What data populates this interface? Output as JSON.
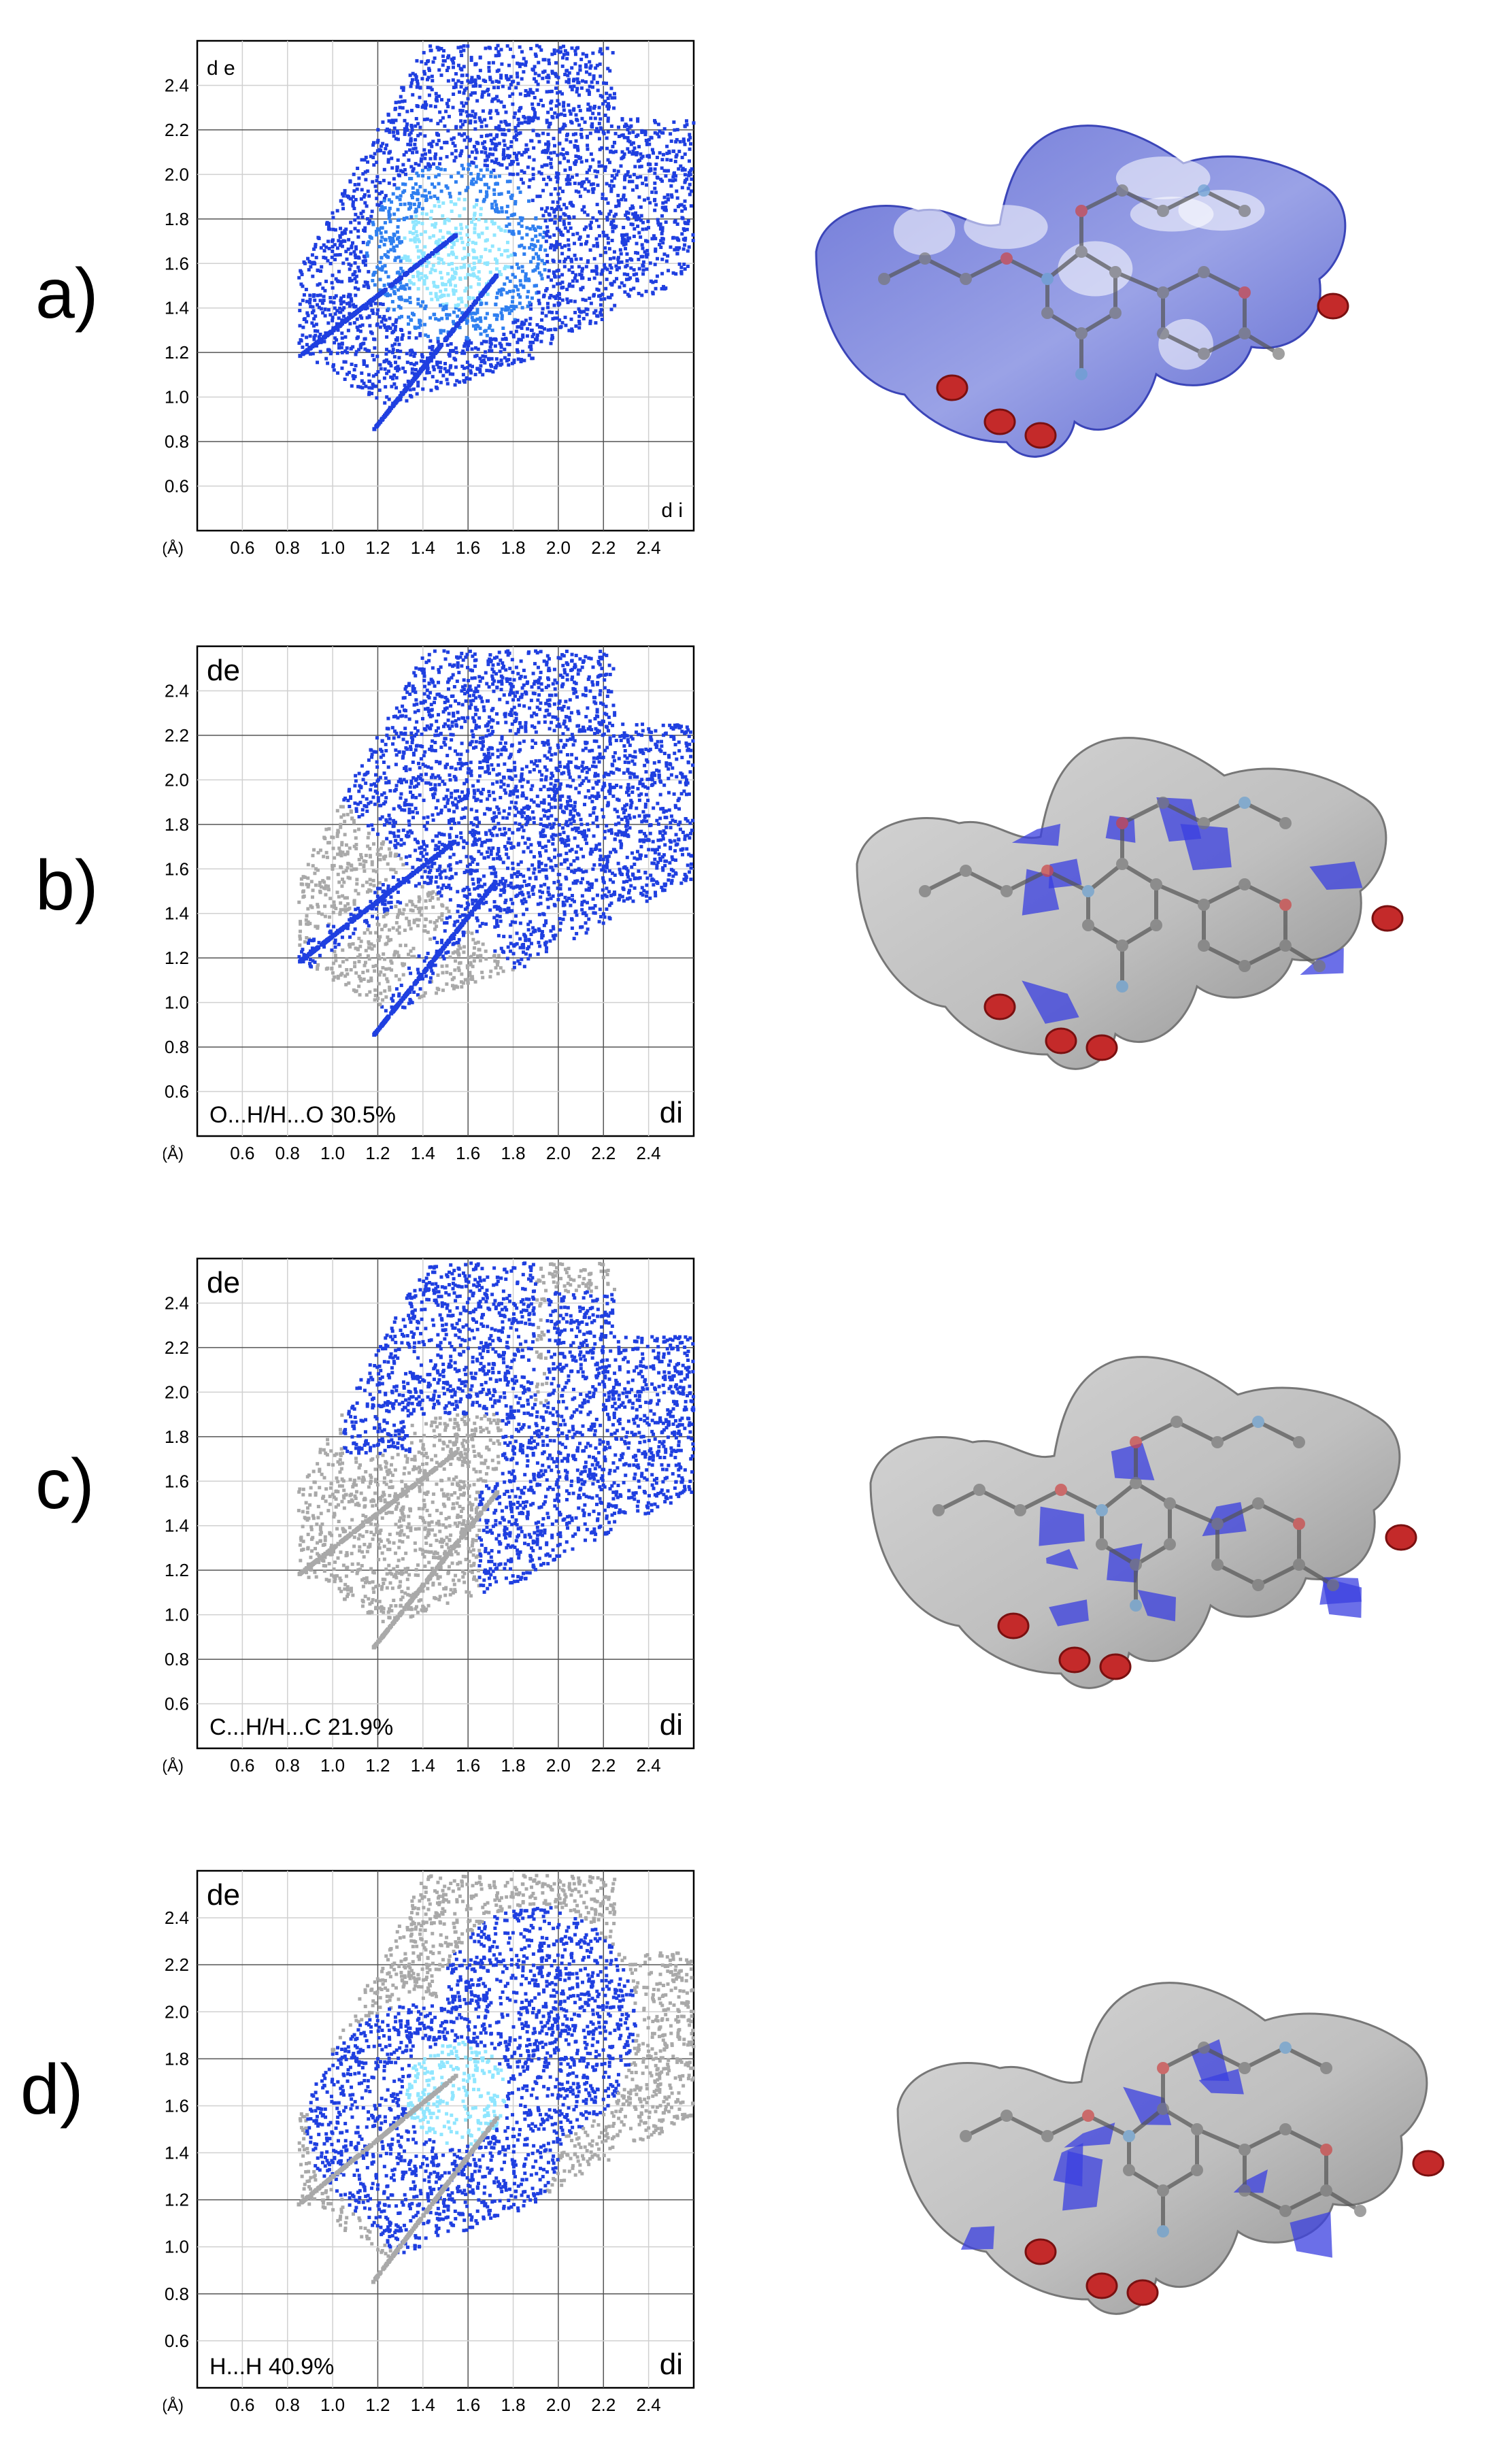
{
  "figure": {
    "panels": [
      {
        "label": "a)",
        "contact_label": "",
        "de_label": "d e",
        "di_label": "d i",
        "highlight": "all"
      },
      {
        "label": "b)",
        "contact_label": "O...H/H...O 30.5%",
        "de_label": "de",
        "di_label": "di",
        "highlight": "OH"
      },
      {
        "label": "c)",
        "contact_label": "C...H/H...C 21.9%",
        "de_label": "de",
        "di_label": "di",
        "highlight": "CH"
      },
      {
        "label": "d)",
        "contact_label": "H...H 40.9%",
        "de_label": "de",
        "di_label": "di",
        "highlight": "HH"
      }
    ]
  },
  "chart_data": [
    {
      "type": "scatter",
      "title": "",
      "xlabel": "d i",
      "ylabel": "d e",
      "unit_label": "(Å)",
      "xlim": [
        0.4,
        2.6
      ],
      "ylim": [
        0.4,
        2.6
      ],
      "x_ticks": [
        "0.6",
        "0.8",
        "1.0",
        "1.2",
        "1.4",
        "1.6",
        "1.8",
        "2.0",
        "2.2",
        "2.4"
      ],
      "y_ticks": [
        "0.6",
        "0.8",
        "1.0",
        "1.2",
        "1.4",
        "1.6",
        "1.8",
        "2.0",
        "2.2",
        "2.4"
      ],
      "contact": "",
      "percent": null,
      "colors": {
        "full": "#1f3fe0",
        "background": "#a9a9a9",
        "dense": "#8fe6ff"
      }
    },
    {
      "type": "scatter",
      "title": "",
      "xlabel": "di",
      "ylabel": "de",
      "unit_label": "(Å)",
      "xlim": [
        0.4,
        2.6
      ],
      "ylim": [
        0.4,
        2.6
      ],
      "x_ticks": [
        "0.6",
        "0.8",
        "1.0",
        "1.2",
        "1.4",
        "1.6",
        "1.8",
        "2.0",
        "2.2",
        "2.4"
      ],
      "y_ticks": [
        "0.6",
        "0.8",
        "1.0",
        "1.2",
        "1.4",
        "1.6",
        "1.8",
        "2.0",
        "2.2",
        "2.4"
      ],
      "contact": "O...H/H...O",
      "percent": 30.5,
      "colors": {
        "full": "#1f3fe0",
        "background": "#a9a9a9",
        "dense": "#8fe6ff"
      }
    },
    {
      "type": "scatter",
      "title": "",
      "xlabel": "di",
      "ylabel": "de",
      "unit_label": "(Å)",
      "xlim": [
        0.4,
        2.6
      ],
      "ylim": [
        0.4,
        2.6
      ],
      "x_ticks": [
        "0.6",
        "0.8",
        "1.0",
        "1.2",
        "1.4",
        "1.6",
        "1.8",
        "2.0",
        "2.2",
        "2.4"
      ],
      "y_ticks": [
        "0.6",
        "0.8",
        "1.0",
        "1.2",
        "1.4",
        "1.6",
        "1.8",
        "2.0",
        "2.2",
        "2.4"
      ],
      "contact": "C...H/H...C",
      "percent": 21.9,
      "colors": {
        "full": "#1f3fe0",
        "background": "#a9a9a9",
        "dense": "#8fe6ff"
      }
    },
    {
      "type": "scatter",
      "title": "",
      "xlabel": "di",
      "ylabel": "de",
      "unit_label": "(Å)",
      "xlim": [
        0.4,
        2.6
      ],
      "ylim": [
        0.4,
        2.6
      ],
      "x_ticks": [
        "0.6",
        "0.8",
        "1.0",
        "1.2",
        "1.4",
        "1.6",
        "1.8",
        "2.0",
        "2.2",
        "2.4"
      ],
      "y_ticks": [
        "0.6",
        "0.8",
        "1.0",
        "1.2",
        "1.4",
        "1.6",
        "1.8",
        "2.0",
        "2.2",
        "2.4"
      ],
      "contact": "H...H",
      "percent": 40.9,
      "colors": {
        "full": "#1f3fe0",
        "background": "#a9a9a9",
        "dense": "#8fe6ff"
      }
    }
  ]
}
